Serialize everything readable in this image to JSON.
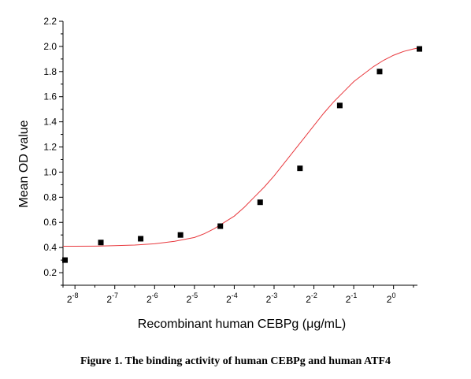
{
  "figure": {
    "caption": "Figure 1. The binding activity of human CEBPg and human ATF4"
  },
  "chart_data": {
    "type": "scatter",
    "xlabel": "Recombinant human CEBPg (μg/mL)",
    "ylabel": "Mean OD value",
    "x_scale": "log2",
    "xlim": [
      -8.3,
      0.6
    ],
    "ylim": [
      0.1,
      2.2
    ],
    "x_ticks": [
      {
        "base": "2",
        "exp": "-8",
        "value": -8
      },
      {
        "base": "2",
        "exp": "-7",
        "value": -7
      },
      {
        "base": "2",
        "exp": "-6",
        "value": -6
      },
      {
        "base": "2",
        "exp": "-5",
        "value": -5
      },
      {
        "base": "2",
        "exp": "-4",
        "value": -4
      },
      {
        "base": "2",
        "exp": "-3",
        "value": -3
      },
      {
        "base": "2",
        "exp": "-2",
        "value": -2
      },
      {
        "base": "2",
        "exp": "-1",
        "value": -1
      },
      {
        "base": "2",
        "exp": "0",
        "value": 0
      }
    ],
    "y_ticks": [
      "0.2",
      "0.4",
      "0.6",
      "0.8",
      "1.0",
      "1.2",
      "1.4",
      "1.6",
      "1.8",
      "2.0",
      "2.2"
    ],
    "series": [
      {
        "marker": "square",
        "color": "#000000",
        "x": [
          -8.3,
          -7.35,
          -6.35,
          -5.35,
          -4.35,
          -3.35,
          -2.35,
          -1.35,
          -0.35,
          0.65
        ],
        "y": [
          0.3,
          0.44,
          0.47,
          0.5,
          0.57,
          0.76,
          1.03,
          1.53,
          1.8,
          1.98
        ]
      }
    ],
    "fit": {
      "type": "sigmoid",
      "color": "#e8383d",
      "x": [
        -8.3,
        -8.0,
        -7.5,
        -7.0,
        -6.5,
        -6.0,
        -5.5,
        -5.0,
        -4.75,
        -4.5,
        -4.25,
        -4.0,
        -3.75,
        -3.5,
        -3.25,
        -3.0,
        -2.75,
        -2.5,
        -2.25,
        -2.0,
        -1.75,
        -1.5,
        -1.25,
        -1.0,
        -0.75,
        -0.5,
        -0.25,
        0.0,
        0.25,
        0.5,
        0.65
      ],
      "y": [
        0.41,
        0.41,
        0.411,
        0.415,
        0.42,
        0.43,
        0.45,
        0.48,
        0.51,
        0.55,
        0.6,
        0.65,
        0.72,
        0.8,
        0.88,
        0.97,
        1.07,
        1.17,
        1.27,
        1.37,
        1.47,
        1.56,
        1.64,
        1.72,
        1.78,
        1.84,
        1.89,
        1.93,
        1.96,
        1.98,
        1.99
      ]
    },
    "grid": false,
    "legend": "none"
  }
}
